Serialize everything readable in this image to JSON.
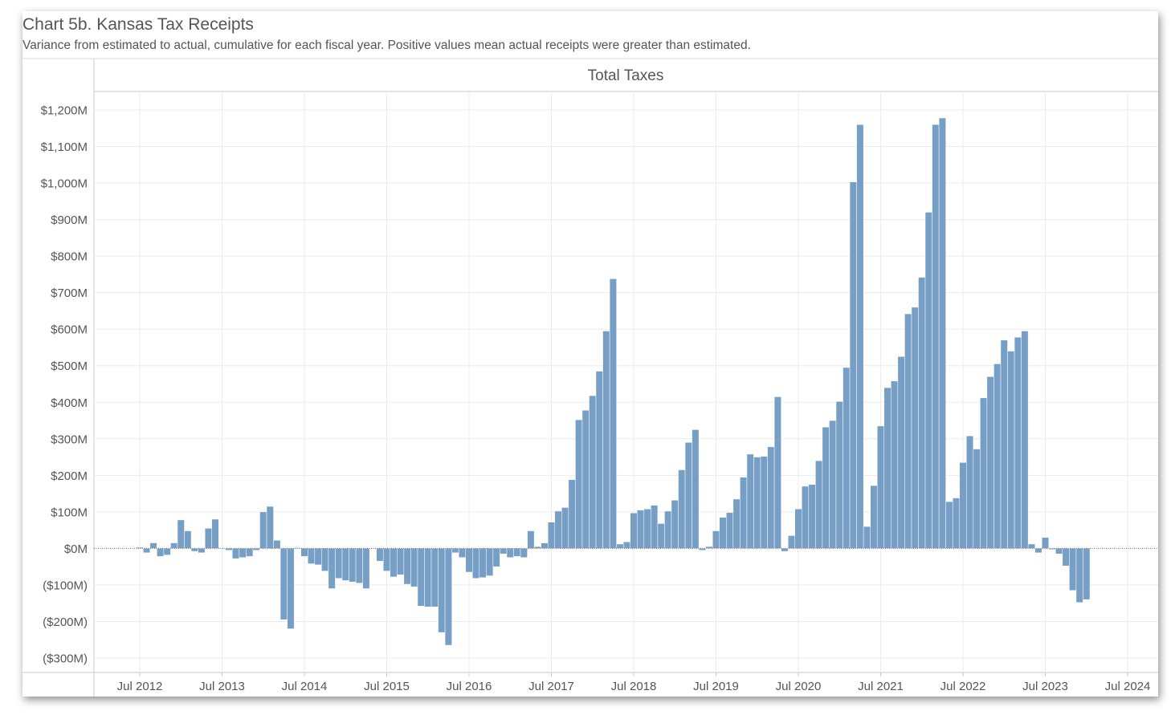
{
  "title": "Chart 5b. Kansas Tax Receipts",
  "subtitle": "Variance from estimated to actual, cumulative for each fiscal year.  Positive values mean actual receipts were greater than estimated.",
  "colors": {
    "bar": "#779fc5",
    "grid": "#ececec",
    "axis_text": "#555555",
    "zero_line": "#666666"
  },
  "chart_data": {
    "type": "bar",
    "title": "Total Taxes",
    "xlabel": "",
    "ylabel": "",
    "ylim": [
      -300,
      1200
    ],
    "yticks": [
      1200,
      1100,
      1000,
      900,
      800,
      700,
      600,
      500,
      400,
      300,
      200,
      100,
      0,
      -100,
      -200,
      -300
    ],
    "ytick_labels": [
      "$1,200M",
      "$1,100M",
      "$1,000M",
      "$900M",
      "$800M",
      "$700M",
      "$600M",
      "$500M",
      "$400M",
      "$300M",
      "$200M",
      "$100M",
      "$0M",
      "($100M)",
      "($200M)",
      "($300M)"
    ],
    "x_range": [
      "2012-01",
      "2024-09"
    ],
    "xticks": [
      "2012-07",
      "2013-07",
      "2014-07",
      "2015-07",
      "2016-07",
      "2017-07",
      "2018-07",
      "2019-07",
      "2020-07",
      "2021-07",
      "2022-07",
      "2023-07",
      "2024-07"
    ],
    "xtick_labels": [
      "Jul 2012",
      "Jul 2013",
      "Jul 2014",
      "Jul 2015",
      "Jul 2016",
      "Jul 2017",
      "Jul 2018",
      "Jul 2019",
      "Jul 2020",
      "Jul 2021",
      "Jul 2022",
      "Jul 2023",
      "Jul 2024"
    ],
    "grid": true,
    "legend": "none",
    "start_month": "2012-07",
    "series": [
      {
        "values": [
          3,
          -12,
          15,
          -22,
          -18,
          15,
          78,
          48,
          -8,
          -12,
          55,
          80,
          0,
          -5,
          -28,
          -25,
          -22,
          -5,
          100,
          115,
          22,
          -195,
          -220,
          2,
          -22,
          -42,
          -45,
          -62,
          -110,
          -82,
          -88,
          -92,
          -95,
          -110,
          0,
          -35,
          -62,
          -78,
          -72,
          -98,
          -105,
          -158,
          -160,
          -160,
          -230,
          -265,
          -12,
          -25,
          -65,
          -82,
          -80,
          -75,
          -50,
          -15,
          -25,
          -22,
          -25,
          48,
          5,
          15,
          72,
          102,
          112,
          188,
          352,
          378,
          418,
          485,
          595,
          738,
          12,
          18,
          97,
          105,
          108,
          118,
          68,
          102,
          132,
          215,
          290,
          325,
          -5,
          5,
          48,
          85,
          98,
          135,
          195,
          258,
          250,
          252,
          278,
          415,
          -8,
          35,
          108,
          170,
          175,
          240,
          332,
          350,
          402,
          495,
          1003,
          1160,
          60,
          172,
          335,
          440,
          458,
          525,
          642,
          660,
          742,
          920,
          1160,
          1178,
          128,
          138,
          235,
          308,
          272,
          412,
          470,
          505,
          570,
          540,
          578,
          595,
          12,
          -12,
          30,
          -3,
          -15,
          -48,
          -115,
          -148,
          -140
        ]
      }
    ]
  }
}
